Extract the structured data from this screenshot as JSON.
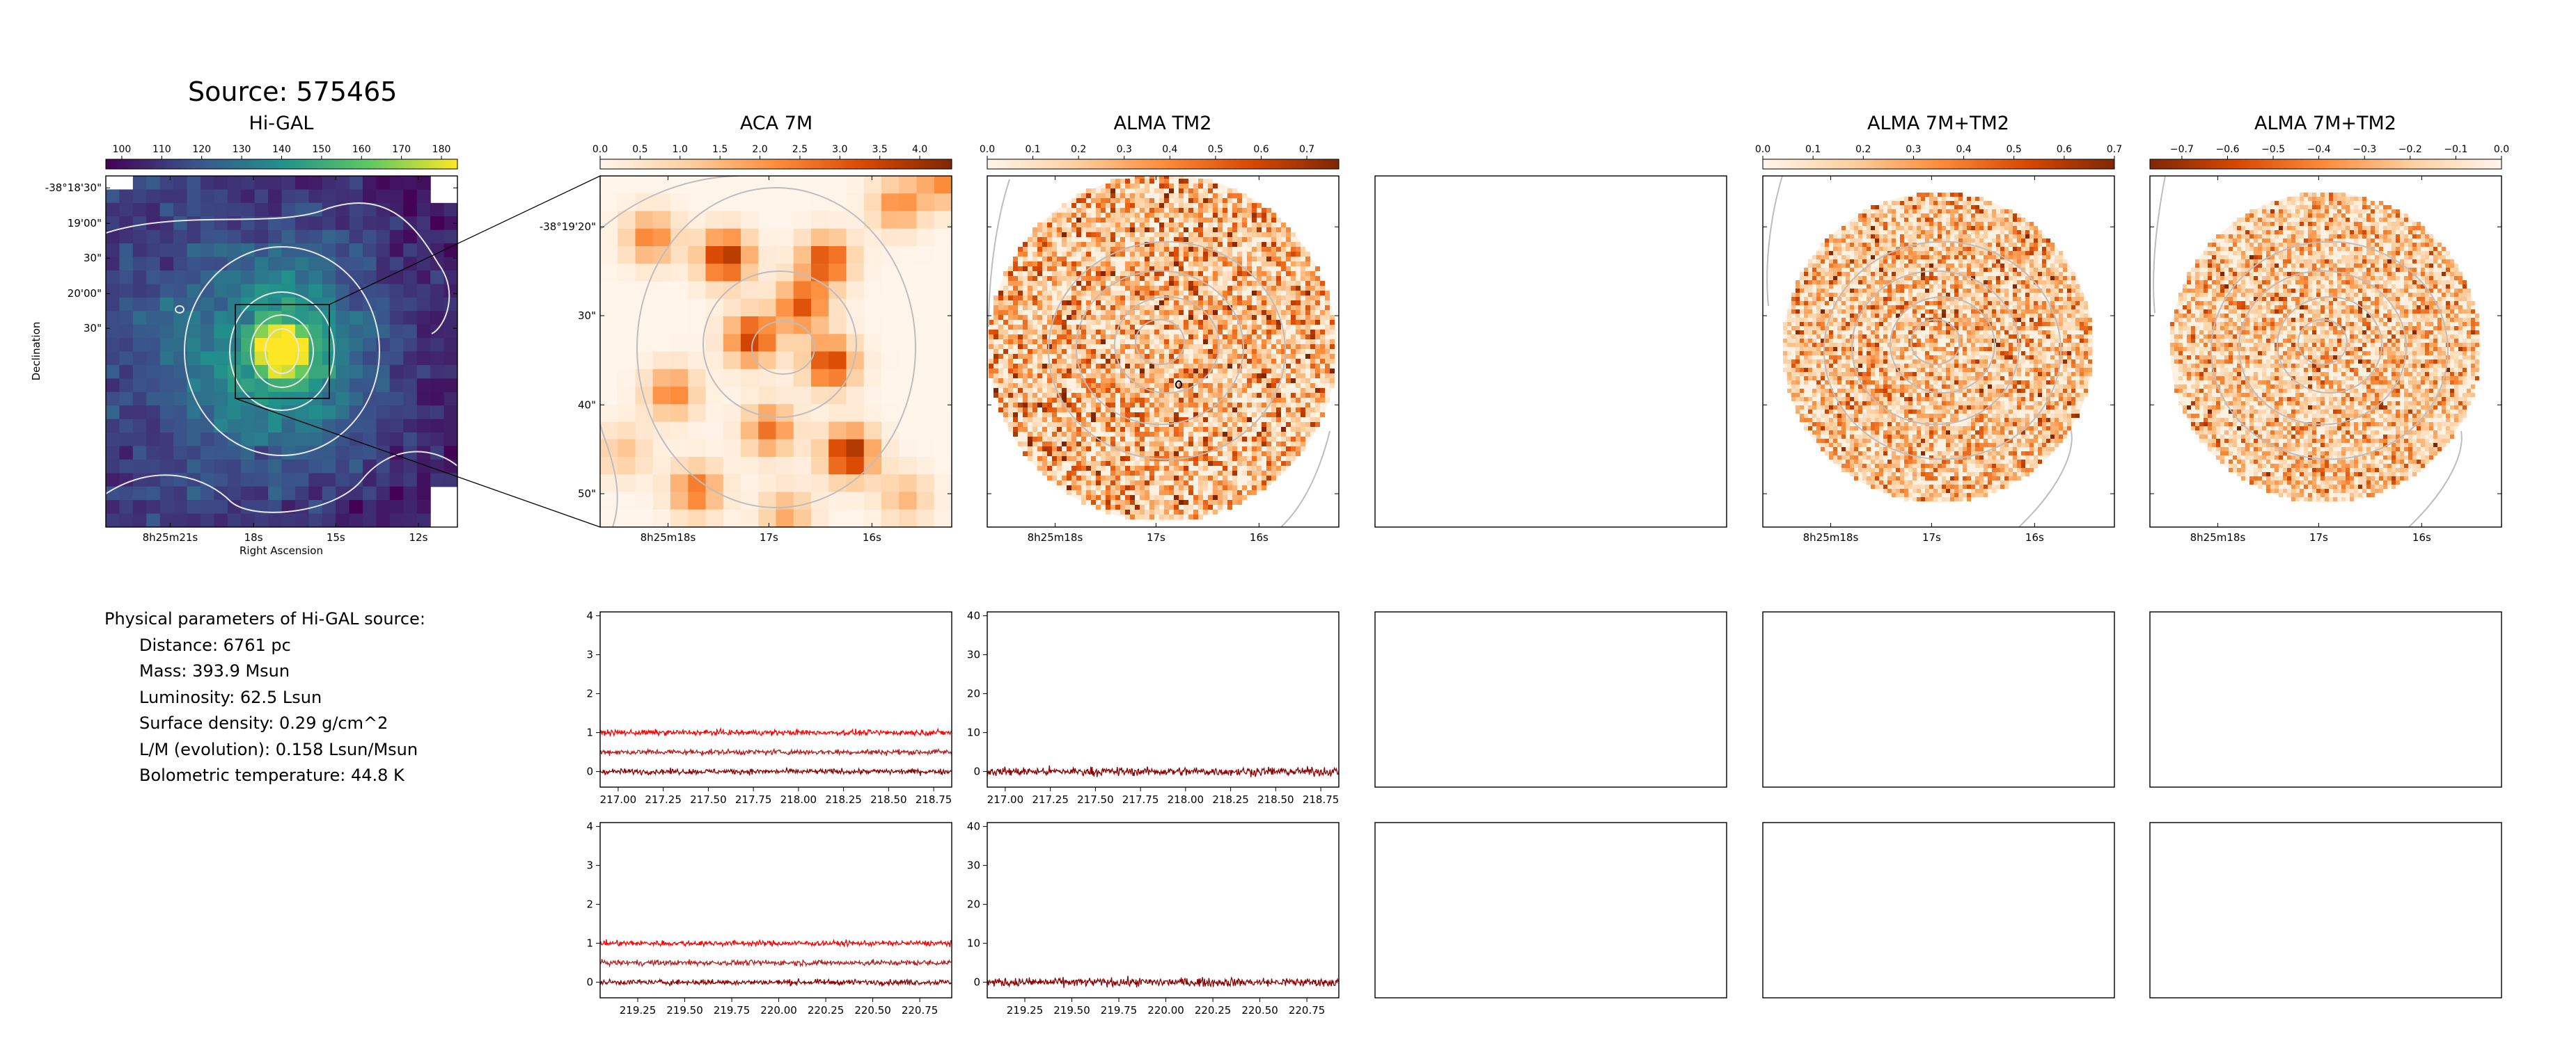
{
  "page_title": "Source: 575465",
  "colors": {
    "higal_colormap": [
      "#440154",
      "#3b528b",
      "#21918c",
      "#5ec962",
      "#fde725"
    ],
    "intensity_colormap": [
      "#fff5eb",
      "#fdd0a2",
      "#fd8d3c",
      "#d94801",
      "#7f2704"
    ],
    "contour": "#bdbdbd",
    "spectrum_series": [
      "#ff0000",
      "#b22222",
      "#8b0000"
    ]
  },
  "physical_parameters": {
    "heading": "Physical parameters of Hi-GAL source:",
    "items": [
      "Distance: 6761 pc",
      "Mass: 393.9 Msun",
      "Luminosity: 62.5 Lsun",
      "Surface density: 0.29 g/cm^2",
      "L/M (evolution): 0.158 Lsun/Msun",
      "Bolometric temperature: 44.8 K"
    ]
  },
  "chart_data": [
    {
      "type": "heatmap",
      "title": "Hi-GAL",
      "colormap": "viridis",
      "colorbar_ticks": [
        "100",
        "110",
        "120",
        "130",
        "140",
        "150",
        "160",
        "170",
        "180"
      ],
      "colorbar_range": [
        96,
        184
      ],
      "xlabel": "Right Ascension",
      "ylabel": "Declination",
      "x_ticks": [
        "8h25m21s",
        "18s",
        "15s",
        "12s"
      ],
      "y_ticks": [
        "-38°18'30\"",
        "19'00\"",
        "30\"",
        "20'00\"",
        "30\""
      ]
    },
    {
      "type": "heatmap",
      "title": "ACA 7M",
      "colormap": "OrRd",
      "colorbar_ticks": [
        "0.0",
        "0.5",
        "1.0",
        "1.5",
        "2.0",
        "2.5",
        "3.0",
        "3.5",
        "4.0"
      ],
      "colorbar_range": [
        0,
        4.4
      ],
      "x_ticks": [
        "8h25m18s",
        "17s",
        "16s"
      ],
      "y_ticks": [
        "-38°19'20\"",
        "30\"",
        "40\"",
        "50\""
      ]
    },
    {
      "type": "heatmap",
      "title": "ALMA TM2",
      "colormap": "OrRd",
      "colorbar_ticks": [
        "0.0",
        "0.1",
        "0.2",
        "0.3",
        "0.4",
        "0.5",
        "0.6",
        "0.7"
      ],
      "colorbar_range": [
        0,
        0.77
      ],
      "x_ticks": [
        "8h25m18s",
        "17s",
        "16s"
      ]
    },
    {
      "type": "heatmap",
      "title": "ALMA 7M+TM2",
      "colormap": "OrRd",
      "colorbar_ticks": [
        "0.0",
        "0.1",
        "0.2",
        "0.3",
        "0.4",
        "0.5",
        "0.6",
        "0.7"
      ],
      "colorbar_range": [
        0,
        0.7
      ],
      "x_ticks": [
        "8h25m18s",
        "17s",
        "16s"
      ]
    },
    {
      "type": "heatmap",
      "title": "ALMA 7M+TM2",
      "colormap": "OrRd_r",
      "colorbar_ticks": [
        "−0.7",
        "−0.6",
        "−0.5",
        "−0.4",
        "−0.3",
        "−0.2",
        "−0.1",
        "0.0"
      ],
      "colorbar_range": [
        -0.77,
        0
      ],
      "x_ticks": [
        "8h25m18s",
        "17s",
        "16s"
      ]
    },
    {
      "type": "line",
      "x_range": [
        216.9,
        218.85
      ],
      "x_ticks": [
        "217.00",
        "217.25",
        "217.50",
        "217.75",
        "218.00",
        "218.25",
        "218.50",
        "218.75"
      ],
      "ylim": [
        -0.4,
        4.1
      ],
      "y_ticks": [
        "0",
        "1",
        "2",
        "3",
        "4"
      ],
      "series": [
        {
          "level": 1.0
        },
        {
          "level": 0.5
        },
        {
          "level": 0.0
        }
      ]
    },
    {
      "type": "line",
      "x_range": [
        216.9,
        218.85
      ],
      "x_ticks": [
        "217.00",
        "217.25",
        "217.50",
        "217.75",
        "218.00",
        "218.25",
        "218.50",
        "218.75"
      ],
      "ylim": [
        -4,
        41
      ],
      "y_ticks": [
        "0",
        "10",
        "20",
        "30",
        "40"
      ],
      "series": [
        {
          "level": 0.0
        }
      ]
    },
    {
      "type": "line",
      "x_range": [
        219.05,
        220.92
      ],
      "x_ticks": [
        "219.25",
        "219.50",
        "219.75",
        "220.00",
        "220.25",
        "220.50",
        "220.75"
      ],
      "ylim": [
        -0.4,
        4.1
      ],
      "y_ticks": [
        "0",
        "1",
        "2",
        "3",
        "4"
      ],
      "series": [
        {
          "level": 1.0
        },
        {
          "level": 0.5
        },
        {
          "level": 0.0
        }
      ]
    },
    {
      "type": "line",
      "x_range": [
        219.05,
        220.92
      ],
      "x_ticks": [
        "219.25",
        "219.50",
        "219.75",
        "220.00",
        "220.25",
        "220.50",
        "220.75"
      ],
      "ylim": [
        -4,
        41
      ],
      "y_ticks": [
        "0",
        "10",
        "20",
        "30",
        "40"
      ],
      "series": [
        {
          "level": 0.0
        }
      ]
    }
  ]
}
